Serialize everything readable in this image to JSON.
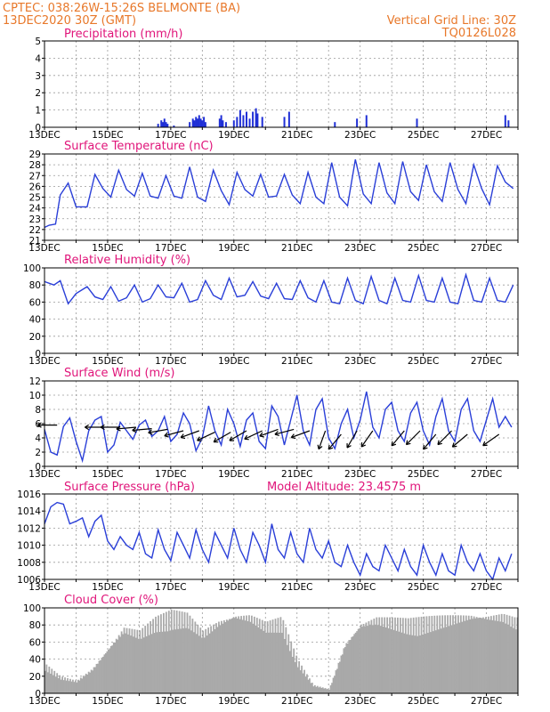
{
  "header": {
    "line1": "CPTEC:   038:26W-15:26S   BELMONTE (BA)",
    "line2": "13DEC2020 30Z (GMT)",
    "grid_note": "Vertical Grid Line: 30Z",
    "code": "TQ0126L028"
  },
  "x_days": [
    "13DEC",
    "15DEC",
    "17DEC",
    "19DEC",
    "21DEC",
    "23DEC",
    "25DEC",
    "27DEC"
  ],
  "chart_data": [
    {
      "type": "bar",
      "title": "Precipitation (mm/h)",
      "ylim": [
        0,
        5
      ],
      "yticks": [
        0,
        1,
        2,
        3,
        4,
        5
      ],
      "grid": true,
      "x_unit": "days from 13DEC 06Z",
      "values": [
        {
          "x": 3.6,
          "y": 0.2
        },
        {
          "x": 3.7,
          "y": 0.4
        },
        {
          "x": 3.75,
          "y": 0.3
        },
        {
          "x": 3.8,
          "y": 0.5
        },
        {
          "x": 3.85,
          "y": 0.3
        },
        {
          "x": 3.9,
          "y": 0.2
        },
        {
          "x": 4.1,
          "y": 0.1
        },
        {
          "x": 4.6,
          "y": 0.3
        },
        {
          "x": 4.7,
          "y": 0.5
        },
        {
          "x": 4.75,
          "y": 0.4
        },
        {
          "x": 4.8,
          "y": 0.6
        },
        {
          "x": 4.85,
          "y": 0.5
        },
        {
          "x": 4.9,
          "y": 0.7
        },
        {
          "x": 4.95,
          "y": 0.5
        },
        {
          "x": 5.0,
          "y": 0.4
        },
        {
          "x": 5.05,
          "y": 0.6
        },
        {
          "x": 5.1,
          "y": 0.3
        },
        {
          "x": 5.55,
          "y": 0.5
        },
        {
          "x": 5.6,
          "y": 0.7
        },
        {
          "x": 5.65,
          "y": 0.4
        },
        {
          "x": 5.75,
          "y": 0.3
        },
        {
          "x": 6.0,
          "y": 0.4
        },
        {
          "x": 6.1,
          "y": 0.6
        },
        {
          "x": 6.2,
          "y": 1.0
        },
        {
          "x": 6.3,
          "y": 0.7
        },
        {
          "x": 6.4,
          "y": 0.9
        },
        {
          "x": 6.5,
          "y": 0.5
        },
        {
          "x": 6.6,
          "y": 0.9
        },
        {
          "x": 6.7,
          "y": 1.1
        },
        {
          "x": 6.75,
          "y": 0.8
        },
        {
          "x": 6.9,
          "y": 0.6
        },
        {
          "x": 7.6,
          "y": 0.6
        },
        {
          "x": 7.75,
          "y": 0.9
        },
        {
          "x": 9.2,
          "y": 0.3
        },
        {
          "x": 9.9,
          "y": 0.5
        },
        {
          "x": 10.2,
          "y": 0.7
        },
        {
          "x": 11.8,
          "y": 0.5
        },
        {
          "x": 14.6,
          "y": 0.7
        },
        {
          "x": 14.7,
          "y": 0.4
        }
      ]
    },
    {
      "type": "line",
      "title": "Surface Temperature (nC)",
      "ylim": [
        21,
        29
      ],
      "yticks": [
        21,
        22,
        23,
        24,
        25,
        26,
        27,
        28,
        29
      ],
      "grid": true,
      "x_unit": "days from 13DEC 06Z",
      "x": [
        0,
        0.15,
        0.35,
        0.5,
        0.75,
        1.0,
        1.35,
        1.6,
        1.85,
        2.1,
        2.35,
        2.6,
        2.85,
        3.1,
        3.35,
        3.6,
        3.85,
        4.1,
        4.35,
        4.6,
        4.85,
        5.1,
        5.35,
        5.6,
        5.85,
        6.1,
        6.35,
        6.6,
        6.85,
        7.1,
        7.35,
        7.6,
        7.85,
        8.1,
        8.35,
        8.6,
        8.85,
        9.1,
        9.35,
        9.6,
        9.85,
        10.1,
        10.35,
        10.6,
        10.85,
        11.1,
        11.35,
        11.6,
        11.85,
        12.1,
        12.35,
        12.6,
        12.85,
        13.1,
        13.35,
        13.6,
        13.85,
        14.1,
        14.35,
        14.6,
        14.85
      ],
      "y": [
        22.2,
        22.4,
        22.5,
        25.2,
        26.3,
        24.1,
        24.1,
        27.1,
        25.8,
        25.0,
        27.5,
        25.7,
        25.1,
        27.2,
        25.1,
        24.9,
        27.0,
        25.1,
        24.9,
        27.8,
        25.0,
        24.6,
        27.5,
        25.6,
        24.3,
        27.3,
        25.7,
        25.1,
        27.1,
        25.0,
        25.1,
        27.1,
        25.2,
        24.4,
        27.3,
        25.0,
        24.4,
        28.2,
        25.0,
        24.2,
        28.5,
        25.3,
        24.4,
        28.2,
        25.4,
        24.4,
        28.3,
        25.5,
        24.7,
        28.0,
        25.5,
        24.6,
        28.2,
        25.7,
        24.4,
        28.0,
        25.8,
        24.3,
        27.9,
        26.4,
        25.8
      ]
    },
    {
      "type": "line",
      "title": "Relative Humidity (%)",
      "ylim": [
        0,
        100
      ],
      "yticks": [
        0,
        20,
        40,
        60,
        80,
        100
      ],
      "grid": true,
      "x_unit": "days from 13DEC 06Z",
      "x": [
        0,
        0.3,
        0.5,
        0.75,
        1.0,
        1.35,
        1.6,
        1.85,
        2.1,
        2.35,
        2.6,
        2.85,
        3.1,
        3.35,
        3.6,
        3.85,
        4.1,
        4.35,
        4.6,
        4.85,
        5.1,
        5.35,
        5.6,
        5.85,
        6.1,
        6.35,
        6.6,
        6.85,
        7.1,
        7.35,
        7.6,
        7.85,
        8.1,
        8.35,
        8.6,
        8.85,
        9.1,
        9.35,
        9.6,
        9.85,
        10.1,
        10.35,
        10.6,
        10.85,
        11.1,
        11.35,
        11.6,
        11.85,
        12.1,
        12.35,
        12.6,
        12.85,
        13.1,
        13.35,
        13.6,
        13.85,
        14.1,
        14.35,
        14.6,
        14.85
      ],
      "y": [
        84,
        80,
        85,
        58,
        70,
        78,
        66,
        63,
        78,
        61,
        65,
        80,
        60,
        64,
        80,
        66,
        65,
        82,
        60,
        63,
        85,
        68,
        63,
        88,
        66,
        68,
        84,
        67,
        64,
        82,
        64,
        63,
        85,
        65,
        60,
        85,
        60,
        58,
        88,
        62,
        58,
        90,
        62,
        58,
        88,
        62,
        60,
        91,
        62,
        60,
        88,
        60,
        58,
        92,
        62,
        60,
        88,
        62,
        60,
        80
      ]
    },
    {
      "type": "line",
      "title": "Surface Wind (m/s)",
      "ylim": [
        0,
        12
      ],
      "yticks": [
        0,
        2,
        4,
        6,
        8,
        10,
        12
      ],
      "grid": true,
      "x_unit": "days from 13DEC 06Z",
      "x": [
        0,
        0.2,
        0.4,
        0.6,
        0.8,
        1.0,
        1.2,
        1.4,
        1.6,
        1.8,
        2.0,
        2.2,
        2.4,
        2.6,
        2.8,
        3.0,
        3.2,
        3.4,
        3.6,
        3.8,
        4.0,
        4.2,
        4.4,
        4.6,
        4.8,
        5.0,
        5.2,
        5.4,
        5.6,
        5.8,
        6.0,
        6.2,
        6.4,
        6.6,
        6.8,
        7.0,
        7.2,
        7.4,
        7.6,
        7.8,
        8.0,
        8.2,
        8.4,
        8.6,
        8.8,
        9.0,
        9.2,
        9.4,
        9.6,
        9.8,
        10.0,
        10.2,
        10.4,
        10.6,
        10.8,
        11.0,
        11.2,
        11.4,
        11.6,
        11.8,
        12.0,
        12.2,
        12.4,
        12.6,
        12.8,
        13.0,
        13.2,
        13.4,
        13.6,
        13.8,
        14.0,
        14.2,
        14.4,
        14.6,
        14.8
      ],
      "y": [
        5.2,
        2.0,
        1.6,
        5.6,
        6.8,
        3.5,
        0.8,
        5.0,
        6.5,
        7.0,
        2.0,
        3.0,
        6.2,
        5.0,
        3.8,
        5.8,
        6.5,
        4.2,
        5.0,
        7.0,
        3.5,
        4.5,
        7.5,
        6.0,
        2.2,
        4.0,
        8.5,
        5.0,
        3.0,
        8.0,
        6.0,
        2.8,
        6.5,
        7.5,
        3.5,
        2.5,
        8.5,
        7.0,
        3.0,
        6.5,
        10.0,
        5.0,
        3.0,
        8.0,
        9.5,
        4.0,
        2.5,
        6.0,
        8.0,
        4.0,
        6.5,
        10.5,
        5.5,
        4.0,
        8.0,
        9.0,
        5.0,
        3.5,
        7.5,
        9.0,
        5.0,
        3.0,
        7.0,
        9.5,
        5.0,
        3.5,
        8.0,
        9.5,
        5.0,
        3.5,
        6.5,
        9.5,
        5.5,
        7.0,
        5.5
      ],
      "vectors": [
        {
          "x": 0.4,
          "dir": 270,
          "speed": 5.8
        },
        {
          "x": 1.9,
          "dir": 270,
          "speed": 5.5
        },
        {
          "x": 2.4,
          "dir": 270,
          "speed": 5.5
        },
        {
          "x": 2.9,
          "dir": 265,
          "speed": 5.5
        },
        {
          "x": 3.4,
          "dir": 265,
          "speed": 5.3
        },
        {
          "x": 3.9,
          "dir": 260,
          "speed": 5.2
        },
        {
          "x": 4.4,
          "dir": 255,
          "speed": 5.0
        },
        {
          "x": 4.9,
          "dir": 250,
          "speed": 5.0
        },
        {
          "x": 5.4,
          "dir": 245,
          "speed": 4.8
        },
        {
          "x": 5.9,
          "dir": 240,
          "speed": 4.8
        },
        {
          "x": 6.4,
          "dir": 240,
          "speed": 5.0
        },
        {
          "x": 6.9,
          "dir": 245,
          "speed": 5.0
        },
        {
          "x": 7.4,
          "dir": 250,
          "speed": 5.2
        },
        {
          "x": 7.9,
          "dir": 255,
          "speed": 5.2
        },
        {
          "x": 8.4,
          "dir": 250,
          "speed": 5.0
        },
        {
          "x": 8.9,
          "dir": 200,
          "speed": 5.0
        },
        {
          "x": 9.4,
          "dir": 220,
          "speed": 4.5
        },
        {
          "x": 9.9,
          "dir": 210,
          "speed": 5.0
        },
        {
          "x": 10.4,
          "dir": 215,
          "speed": 5.0
        },
        {
          "x": 11.4,
          "dir": 220,
          "speed": 5.0
        },
        {
          "x": 11.9,
          "dir": 225,
          "speed": 5.0
        },
        {
          "x": 12.4,
          "dir": 220,
          "speed": 4.5
        },
        {
          "x": 12.9,
          "dir": 225,
          "speed": 5.0
        },
        {
          "x": 13.4,
          "dir": 230,
          "speed": 4.5
        },
        {
          "x": 14.4,
          "dir": 235,
          "speed": 4.5
        }
      ]
    },
    {
      "type": "line",
      "title": "Surface Pressure (hPa)",
      "subtitle": "Model Altitude: 23.4575 m",
      "ylim": [
        1006,
        1016
      ],
      "yticks": [
        1006,
        1008,
        1010,
        1012,
        1014,
        1016
      ],
      "grid": true,
      "x_unit": "days from 13DEC 06Z",
      "x": [
        0,
        0.2,
        0.4,
        0.6,
        0.8,
        1.0,
        1.2,
        1.4,
        1.6,
        1.8,
        2.0,
        2.2,
        2.4,
        2.6,
        2.8,
        3.0,
        3.2,
        3.4,
        3.6,
        3.8,
        4.0,
        4.2,
        4.4,
        4.6,
        4.8,
        5.0,
        5.2,
        5.4,
        5.6,
        5.8,
        6.0,
        6.2,
        6.4,
        6.6,
        6.8,
        7.0,
        7.2,
        7.4,
        7.6,
        7.8,
        8.0,
        8.2,
        8.4,
        8.6,
        8.8,
        9.0,
        9.2,
        9.4,
        9.6,
        9.8,
        10.0,
        10.2,
        10.4,
        10.6,
        10.8,
        11.0,
        11.2,
        11.4,
        11.6,
        11.8,
        12.0,
        12.2,
        12.4,
        12.6,
        12.8,
        13.0,
        13.2,
        13.4,
        13.6,
        13.8,
        14.0,
        14.2,
        14.4,
        14.6,
        14.8
      ],
      "y": [
        1012.5,
        1014.5,
        1015.0,
        1014.8,
        1012.5,
        1012.8,
        1013.2,
        1011.0,
        1012.8,
        1013.5,
        1010.5,
        1009.5,
        1011.0,
        1010.0,
        1009.5,
        1011.5,
        1009.0,
        1008.5,
        1011.8,
        1009.5,
        1008.2,
        1011.5,
        1010.0,
        1008.5,
        1011.8,
        1009.5,
        1008.0,
        1011.5,
        1010.0,
        1008.5,
        1012.0,
        1009.5,
        1008.0,
        1011.5,
        1010.0,
        1008.0,
        1012.5,
        1009.5,
        1008.5,
        1011.5,
        1009.0,
        1008.0,
        1012.0,
        1009.5,
        1008.5,
        1010.5,
        1008.0,
        1007.5,
        1010.0,
        1008.0,
        1006.5,
        1009.0,
        1007.5,
        1007.0,
        1010.0,
        1008.5,
        1007.0,
        1009.5,
        1007.5,
        1006.5,
        1010.0,
        1008.0,
        1006.5,
        1009.0,
        1007.0,
        1006.5,
        1010.0,
        1008.0,
        1007.0,
        1009.0,
        1007.0,
        1006.0,
        1008.5,
        1007.0,
        1009.0
      ]
    },
    {
      "type": "bar",
      "title": "Cloud Cover (%)",
      "ylim": [
        0,
        100
      ],
      "yticks": [
        0,
        20,
        40,
        60,
        80,
        100
      ],
      "grid": true,
      "x_unit": "days from 13DEC 06Z",
      "x": [
        0,
        0.5,
        1.0,
        1.5,
        2.0,
        2.5,
        3.0,
        3.5,
        4.0,
        4.5,
        5.0,
        5.5,
        6.0,
        6.5,
        7.0,
        7.5,
        8.0,
        8.5,
        9.0,
        9.5,
        10.0,
        10.5,
        11.0,
        11.5,
        12.0,
        12.5,
        13.0,
        13.5,
        14.0,
        14.5,
        14.9
      ],
      "values": [
        35,
        20,
        15,
        30,
        55,
        80,
        75,
        90,
        98,
        95,
        75,
        88,
        96,
        95,
        85,
        90,
        40,
        10,
        5,
        60,
        85,
        92,
        90,
        88,
        90,
        92,
        94,
        96,
        95,
        96,
        90
      ]
    }
  ]
}
